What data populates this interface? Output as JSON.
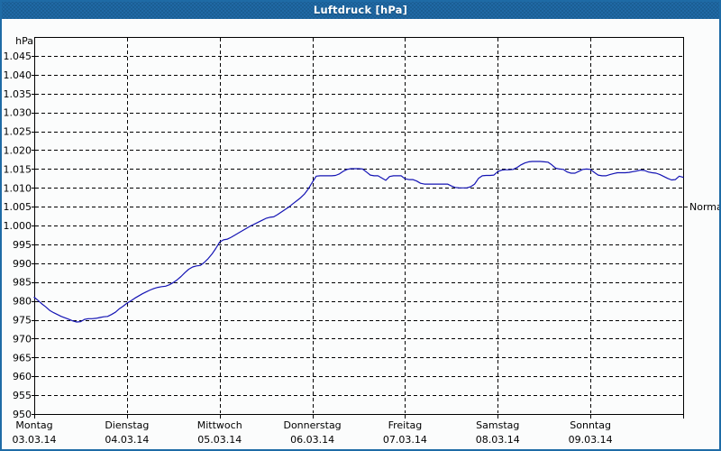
{
  "window": {
    "title": "Luftdruck [hPa]"
  },
  "colors": {
    "titlebar_blue": "#2069a5",
    "window_border_blue": "#1e6ba6",
    "curve_blue": "#1414b4",
    "grid_black": "#000000",
    "background": "#fbfcfc",
    "title_text": "#ffffff"
  },
  "chart_data": {
    "type": "line",
    "title": "Luftdruck [hPa]",
    "unit_label": "hPa",
    "grid": "dashed",
    "legend": "none",
    "ylim": [
      950,
      1045
    ],
    "ytick_step": 5,
    "yticks": [
      {
        "v": 1045,
        "label": "1.045"
      },
      {
        "v": 1040,
        "label": "1.040"
      },
      {
        "v": 1035,
        "label": "1.035"
      },
      {
        "v": 1030,
        "label": "1.030"
      },
      {
        "v": 1025,
        "label": "1.025"
      },
      {
        "v": 1020,
        "label": "1.020"
      },
      {
        "v": 1015,
        "label": "1.015"
      },
      {
        "v": 1010,
        "label": "1.010"
      },
      {
        "v": 1005,
        "label": "1.005"
      },
      {
        "v": 1000,
        "label": "1.000"
      },
      {
        "v": 995,
        "label": "995"
      },
      {
        "v": 990,
        "label": "990"
      },
      {
        "v": 985,
        "label": "985"
      },
      {
        "v": 980,
        "label": "980"
      },
      {
        "v": 975,
        "label": "975"
      },
      {
        "v": 970,
        "label": "970"
      },
      {
        "v": 965,
        "label": "965"
      },
      {
        "v": 960,
        "label": "960"
      },
      {
        "v": 955,
        "label": "955"
      },
      {
        "v": 950,
        "label": "950"
      }
    ],
    "x_range_hours": [
      0,
      168
    ],
    "x_days": [
      {
        "name": "Montag",
        "date": "03.03.14"
      },
      {
        "name": "Dienstag",
        "date": "04.03.14"
      },
      {
        "name": "Mittwoch",
        "date": "05.03.14"
      },
      {
        "name": "Donnerstag",
        "date": "06.03.14"
      },
      {
        "name": "Freitag",
        "date": "07.03.14"
      },
      {
        "name": "Samstag",
        "date": "08.03.14"
      },
      {
        "name": "Sonntag",
        "date": "09.03.14"
      }
    ],
    "normal_marker": {
      "label": "Normal",
      "value": 1005
    },
    "series": [
      {
        "name": "Luftdruck",
        "color": "#1414b4",
        "start_hour": 0,
        "step_hours": 1,
        "values": [
          981.0,
          980.1,
          979.2,
          978.4,
          977.5,
          976.9,
          976.4,
          975.9,
          975.5,
          975.1,
          974.7,
          974.4,
          974.5,
          975.1,
          975.3,
          975.3,
          975.4,
          975.6,
          975.8,
          975.9,
          976.4,
          977.0,
          977.9,
          978.6,
          979.4,
          980.0,
          980.7,
          981.3,
          981.9,
          982.4,
          982.9,
          983.3,
          983.6,
          983.8,
          983.9,
          984.3,
          984.9,
          985.6,
          986.5,
          987.5,
          988.4,
          989.0,
          989.3,
          989.4,
          990.2,
          991.2,
          992.4,
          993.9,
          995.6,
          996.2,
          996.4,
          996.9,
          997.5,
          998.1,
          998.7,
          999.3,
          999.9,
          1000.4,
          1000.9,
          1001.4,
          1001.9,
          1002.2,
          1002.3,
          1002.9,
          1003.6,
          1004.3,
          1005.0,
          1005.8,
          1006.6,
          1007.4,
          1008.4,
          1009.8,
          1011.5,
          1013.1,
          1013.2,
          1013.2,
          1013.2,
          1013.2,
          1013.3,
          1013.7,
          1014.4,
          1014.9,
          1015.1,
          1015.1,
          1015.1,
          1015.0,
          1014.2,
          1013.4,
          1013.2,
          1013.2,
          1012.6,
          1012.0,
          1013.0,
          1013.2,
          1013.2,
          1013.2,
          1012.4,
          1012.2,
          1012.2,
          1011.8,
          1011.2,
          1011.0,
          1011.0,
          1011.0,
          1011.0,
          1011.0,
          1011.0,
          1011.0,
          1010.5,
          1010.1,
          1010.0,
          1010.0,
          1010.0,
          1010.3,
          1011.0,
          1012.5,
          1013.2,
          1013.3,
          1013.3,
          1013.4,
          1014.3,
          1014.7,
          1014.8,
          1014.8,
          1014.9,
          1015.4,
          1016.1,
          1016.6,
          1016.9,
          1017.0,
          1017.0,
          1017.0,
          1016.9,
          1016.8,
          1016.1,
          1015.2,
          1015.0,
          1014.9,
          1014.2,
          1013.9,
          1013.9,
          1014.4,
          1014.9,
          1015.0,
          1014.9,
          1014.1,
          1013.4,
          1013.2,
          1013.2,
          1013.5,
          1013.8,
          1014.0,
          1014.0,
          1014.0,
          1014.1,
          1014.3,
          1014.5,
          1014.7,
          1014.6,
          1014.2,
          1014.0,
          1013.9,
          1013.5,
          1013.0,
          1012.5,
          1012.1,
          1012.2,
          1013.1,
          1012.8
        ]
      }
    ]
  }
}
